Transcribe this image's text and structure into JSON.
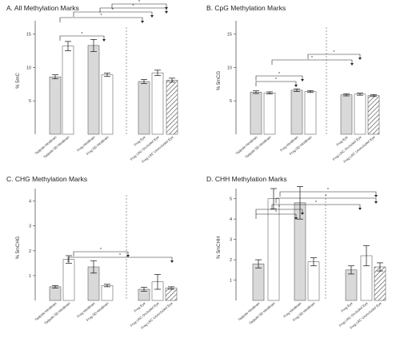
{
  "chart_data": [
    {
      "type": "bar",
      "title": "A. All Methylation Marks",
      "ylabel": "% 5mC",
      "ylim": [
        0,
        17
      ],
      "yticks": [
        5,
        10,
        15
      ],
      "categories": [
        "Tadpole Hindbrain",
        "Tadpole SD Hindbrain",
        "Frog Hindbrain",
        "Frog SD Hindbrain",
        "Frog Eye",
        "Frog LRC Occluded Eye",
        "Frog LRC Unoccluded Eye"
      ],
      "values": [
        8.6,
        13.2,
        13.3,
        8.9,
        7.9,
        9.2,
        8.1
      ],
      "errors": [
        0.3,
        0.7,
        0.9,
        0.25,
        0.3,
        0.4,
        0.3
      ],
      "fills": [
        "#d9d9d9",
        "#ffffff",
        "#d9d9d9",
        "#ffffff",
        "#d9d9d9",
        "#ffffff",
        "hatch"
      ],
      "significance_marks": [
        "*",
        "*",
        "*",
        "*",
        "*"
      ]
    },
    {
      "type": "bar",
      "title": "B. CpG Methylation Marks",
      "ylabel": "% 5mCG",
      "ylim": [
        0,
        17
      ],
      "yticks": [
        5,
        10,
        15
      ],
      "categories": [
        "Tadpole Hindbrain",
        "Tadpole SD Hindbrain",
        "Frog Hindbrain",
        "Frog SD Hindbrain",
        "Frog Eye",
        "Frog LRC Occluded Eye",
        "Frog LRC Unoccluded Eye"
      ],
      "values": [
        6.3,
        6.2,
        6.6,
        6.4,
        5.9,
        6.0,
        5.8
      ],
      "errors": [
        0.2,
        0.15,
        0.2,
        0.15,
        0.15,
        0.15,
        0.15
      ],
      "fills": [
        "#d9d9d9",
        "#ffffff",
        "#d9d9d9",
        "#ffffff",
        "#d9d9d9",
        "#ffffff",
        "hatch"
      ],
      "significance_marks": [
        "*",
        "*",
        "*",
        "*"
      ]
    },
    {
      "type": "bar",
      "title": "C. CHG Methylation Marks",
      "ylabel": "% 5mCHG",
      "ylim": [
        0,
        4.5
      ],
      "yticks": [
        1,
        2,
        3,
        4
      ],
      "categories": [
        "Tadpole Hindbrain",
        "Tadpole SD Hindbrain",
        "Frog Hindbrain",
        "Frog SD Hindbrain",
        "Frog Eye",
        "Frog LRC Occluded Eye",
        "Frog LRC Unoccluded Eye"
      ],
      "values": [
        0.55,
        1.65,
        1.35,
        0.6,
        0.45,
        0.75,
        0.5
      ],
      "errors": [
        0.05,
        0.15,
        0.25,
        0.05,
        0.08,
        0.3,
        0.05
      ],
      "fills": [
        "#d9d9d9",
        "#ffffff",
        "#d9d9d9",
        "#ffffff",
        "#d9d9d9",
        "#ffffff",
        "hatch"
      ],
      "significance_marks": [
        "*",
        "*"
      ]
    },
    {
      "type": "bar",
      "title": "D. CHH Methylation Marks",
      "ylabel": "% 5mCHH",
      "ylim": [
        0,
        5.5
      ],
      "yticks": [
        1,
        2,
        3,
        4,
        5
      ],
      "categories": [
        "Tadpole Hindbrain",
        "Tadpole SD Hindbrain",
        "Frog Hindbrain",
        "Frog SD Hindbrain",
        "Frog Eye",
        "Frog LRC Occluded Eye",
        "Frog LRC Unoccluded Eye"
      ],
      "values": [
        1.8,
        5.0,
        4.8,
        1.9,
        1.5,
        2.2,
        1.65
      ],
      "errors": [
        0.2,
        0.5,
        0.8,
        0.2,
        0.2,
        0.5,
        0.2
      ],
      "fills": [
        "#d9d9d9",
        "#ffffff",
        "#d9d9d9",
        "#ffffff",
        "#d9d9d9",
        "#ffffff",
        "hatch"
      ],
      "significance_marks": [
        "*",
        "*",
        "*",
        "*",
        "*"
      ]
    }
  ]
}
